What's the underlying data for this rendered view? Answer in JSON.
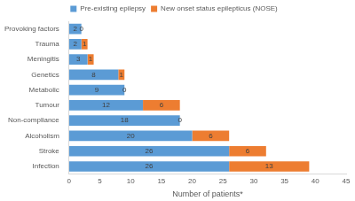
{
  "chart_data": {
    "type": "bar",
    "orientation": "horizontal",
    "stacked": true,
    "x_label": "Number of patients*",
    "categories": [
      "Provoking factors",
      "Trauma",
      "Meningitis",
      "Genetics",
      "Metabolic",
      "Tumour",
      "Non-compliance",
      "Alcoholism",
      "Stroke",
      "Infection"
    ],
    "series": [
      {
        "name": "Pre-existing epilepsy",
        "color": "#5b9bd5",
        "values": [
          2,
          2,
          3,
          8,
          9,
          12,
          18,
          20,
          26,
          26
        ]
      },
      {
        "name": "New onset status epilepticus (NOSE)",
        "color": "#ed7d31",
        "values": [
          0,
          1,
          1,
          1,
          0,
          6,
          0,
          6,
          6,
          13
        ]
      }
    ],
    "xlim": [
      0,
      45
    ],
    "xticks": [
      0,
      5,
      10,
      15,
      20,
      25,
      30,
      35,
      40,
      45
    ],
    "grid": false,
    "legend": "top",
    "data_labels": true
  }
}
